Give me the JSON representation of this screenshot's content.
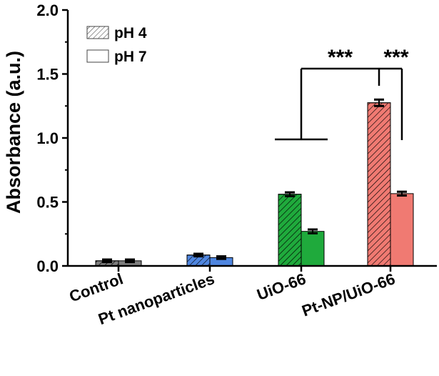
{
  "chart_data": {
    "type": "bar",
    "title": "",
    "xlabel": "",
    "ylabel": "Absorbance (a.u.)",
    "ylim": [
      0,
      2.0
    ],
    "yticks": [
      "0.0",
      "0.5",
      "1.0",
      "1.5",
      "2.0"
    ],
    "categories": [
      "Control",
      "Pt nanoparticles",
      "UiO-66",
      "Pt-NP/UiO-66"
    ],
    "series": [
      {
        "name": "pH 4",
        "pattern": "hatched",
        "values": [
          0.04,
          0.085,
          0.56,
          1.275
        ],
        "errors": [
          0.01,
          0.01,
          0.015,
          0.025
        ]
      },
      {
        "name": "pH 7",
        "pattern": "solid",
        "values": [
          0.04,
          0.065,
          0.27,
          0.565
        ],
        "errors": [
          0.01,
          0.01,
          0.015,
          0.015
        ]
      }
    ],
    "category_colors": [
      "#7f7f7f",
      "#4f86e0",
      "#1faa3c",
      "#f07a72"
    ],
    "legend_position": "top-left",
    "significance": [
      {
        "label": "***"
      },
      {
        "label": "***"
      }
    ],
    "grid": false
  }
}
